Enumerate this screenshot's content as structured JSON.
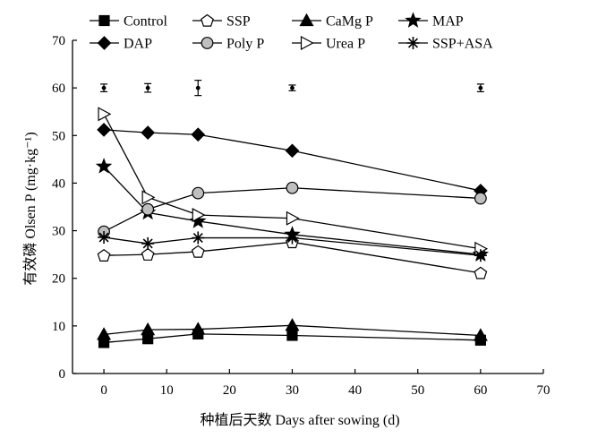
{
  "chart_data": {
    "type": "line",
    "xlabel": "种植后天数 Days after sowing (d)",
    "ylabel": "有效磷 Olsen P (mg·kg⁻¹)",
    "xlim": [
      -5,
      70
    ],
    "ylim": [
      0,
      70
    ],
    "x_ticks": [
      0,
      10,
      20,
      30,
      40,
      50,
      60,
      70
    ],
    "y_ticks": [
      0,
      10,
      20,
      30,
      40,
      50,
      60,
      70
    ],
    "grid": false,
    "legend_position": "top",
    "series": [
      {
        "name": "Control",
        "marker": "square",
        "fill": "#000000",
        "x": [
          0,
          7,
          15,
          30,
          60
        ],
        "y": [
          6.5,
          7.3,
          8.3,
          8.0,
          7.0
        ]
      },
      {
        "name": "SSP",
        "marker": "pentagon",
        "fill": "#ffffff",
        "x": [
          0,
          7,
          15,
          30,
          60
        ],
        "y": [
          24.8,
          25.0,
          25.6,
          27.6,
          21.1
        ]
      },
      {
        "name": "CaMg P",
        "marker": "triangle",
        "fill": "#000000",
        "x": [
          0,
          7,
          15,
          30,
          60
        ],
        "y": [
          8.2,
          9.2,
          9.3,
          10.1,
          8.0
        ]
      },
      {
        "name": "MAP",
        "marker": "star",
        "fill": "#000000",
        "x": [
          0,
          7,
          15,
          30,
          60
        ],
        "y": [
          43.5,
          33.8,
          32.0,
          29.2,
          25.0
        ]
      },
      {
        "name": "DAP",
        "marker": "diamond",
        "fill": "#000000",
        "x": [
          0,
          7,
          15,
          30,
          60
        ],
        "y": [
          51.2,
          50.6,
          50.2,
          46.8,
          38.4
        ]
      },
      {
        "name": "Poly P",
        "marker": "circle",
        "fill": "#bfbfbf",
        "x": [
          0,
          7,
          15,
          30,
          60
        ],
        "y": [
          29.8,
          34.5,
          37.9,
          39.0,
          36.8
        ]
      },
      {
        "name": "Urea P",
        "marker": "triangle-right",
        "fill": "#ffffff",
        "x": [
          0,
          7,
          15,
          30,
          60
        ],
        "y": [
          54.5,
          37.0,
          33.3,
          32.6,
          26.2
        ]
      },
      {
        "name": "SSP+ASA",
        "marker": "asterisk",
        "fill": "#000000",
        "x": [
          0,
          7,
          15,
          30,
          60
        ],
        "y": [
          28.6,
          27.3,
          28.5,
          28.5,
          24.8
        ]
      }
    ],
    "error_bars": {
      "x": [
        0,
        7,
        15,
        30,
        60
      ],
      "y": [
        60,
        60,
        60,
        60,
        60
      ],
      "half_range": [
        0.8,
        0.9,
        1.6,
        0.6,
        0.8
      ]
    }
  }
}
